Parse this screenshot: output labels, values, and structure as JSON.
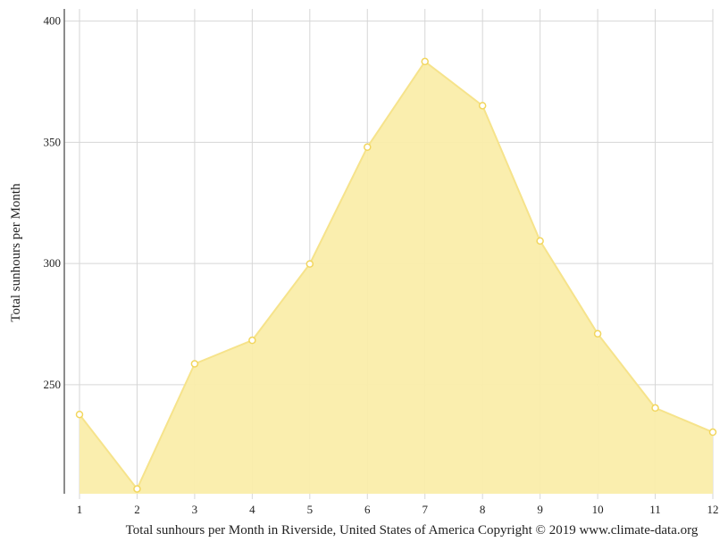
{
  "chart_data": {
    "type": "area",
    "title": "",
    "xlabel": "Total sunhours per Month in Riverside, United States of America Copyright © 2019 www.climate-data.org",
    "ylabel": "Total sunhours per Month",
    "x": [
      1,
      2,
      3,
      4,
      5,
      6,
      7,
      8,
      9,
      10,
      11,
      12
    ],
    "x_tick_labels": [
      "1",
      "2",
      "3",
      "4",
      "5",
      "6",
      "7",
      "8",
      "9",
      "10",
      "11",
      "12"
    ],
    "y_ticks": [
      250,
      300,
      350,
      400
    ],
    "y_tick_labels": [
      "250",
      "300",
      "350",
      "400"
    ],
    "ylim": [
      205,
      405
    ],
    "xlim": [
      1,
      12
    ],
    "grid": true,
    "legend": "none",
    "series": [
      {
        "values": [
          237.7,
          207.0,
          258.6,
          268.3,
          299.8,
          348.0,
          383.3,
          365.1,
          309.3,
          271.0,
          240.4,
          230.4
        ],
        "fill_color": "#faedaa",
        "line_color": "#f6e38b",
        "marker_color": "#f2d65e"
      }
    ],
    "colors": {
      "grid": "#d6d6d6",
      "axis": "#666666"
    }
  }
}
